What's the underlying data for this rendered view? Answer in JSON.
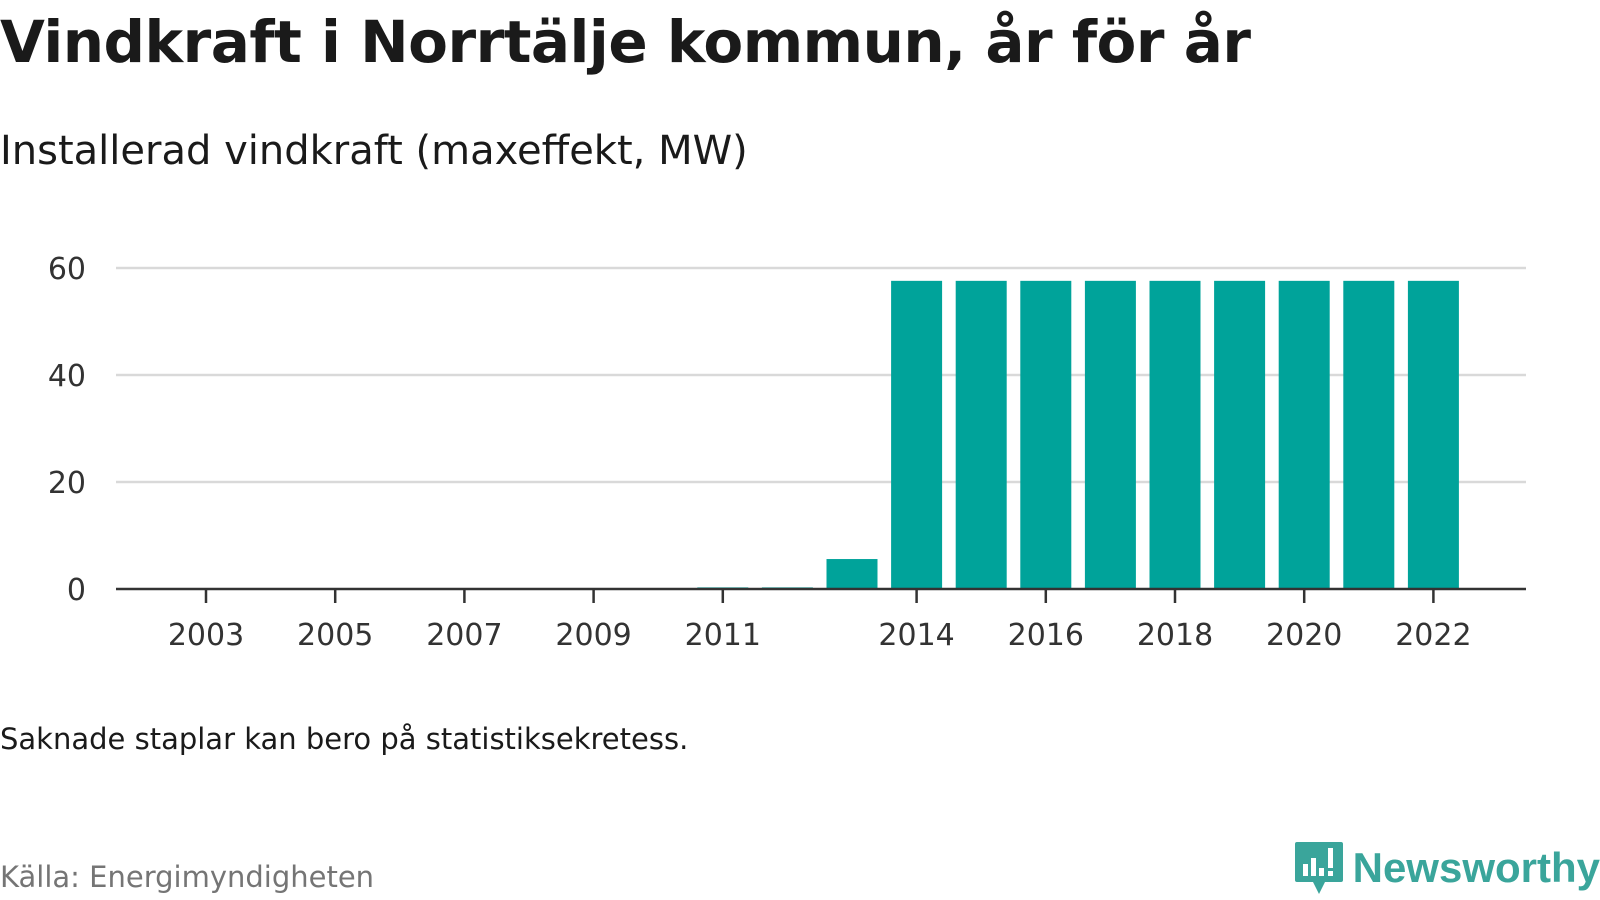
{
  "title": "Vindkraft i Norrtälje kommun, år för år",
  "subtitle": "Installerad vindkraft (maxeffekt, MW)",
  "note": "Saknade staplar kan bero på statistiksekretess.",
  "source": "Källa: Energimyndigheten",
  "brand": "Newsworthy",
  "colors": {
    "bar": "#00a39a",
    "grid": "#d9d9d9",
    "axis": "#333333",
    "brand": "#3aa59b"
  },
  "chart_data": {
    "type": "bar",
    "title": "Vindkraft i Norrtälje kommun, år för år",
    "subtitle": "Installerad vindkraft (maxeffekt, MW)",
    "xlabel": "",
    "ylabel": "",
    "ylim": [
      0,
      60
    ],
    "yticks": [
      0,
      20,
      40,
      60
    ],
    "grid": true,
    "categories": [
      "2003",
      "2004",
      "2005",
      "2006",
      "2007",
      "2008",
      "2009",
      "2010",
      "2011",
      "2012",
      "2013",
      "2014",
      "2015",
      "2016",
      "2017",
      "2018",
      "2019",
      "2020",
      "2021",
      "2022"
    ],
    "xticks": [
      "2003",
      "2005",
      "2007",
      "2009",
      "2011",
      "2014",
      "2016",
      "2018",
      "2020",
      "2022"
    ],
    "values": [
      0,
      0,
      0,
      0,
      0,
      0,
      0,
      0,
      0.3,
      0.3,
      5.6,
      57.6,
      57.6,
      57.6,
      57.6,
      57.6,
      57.6,
      57.6,
      57.6,
      57.6
    ]
  }
}
